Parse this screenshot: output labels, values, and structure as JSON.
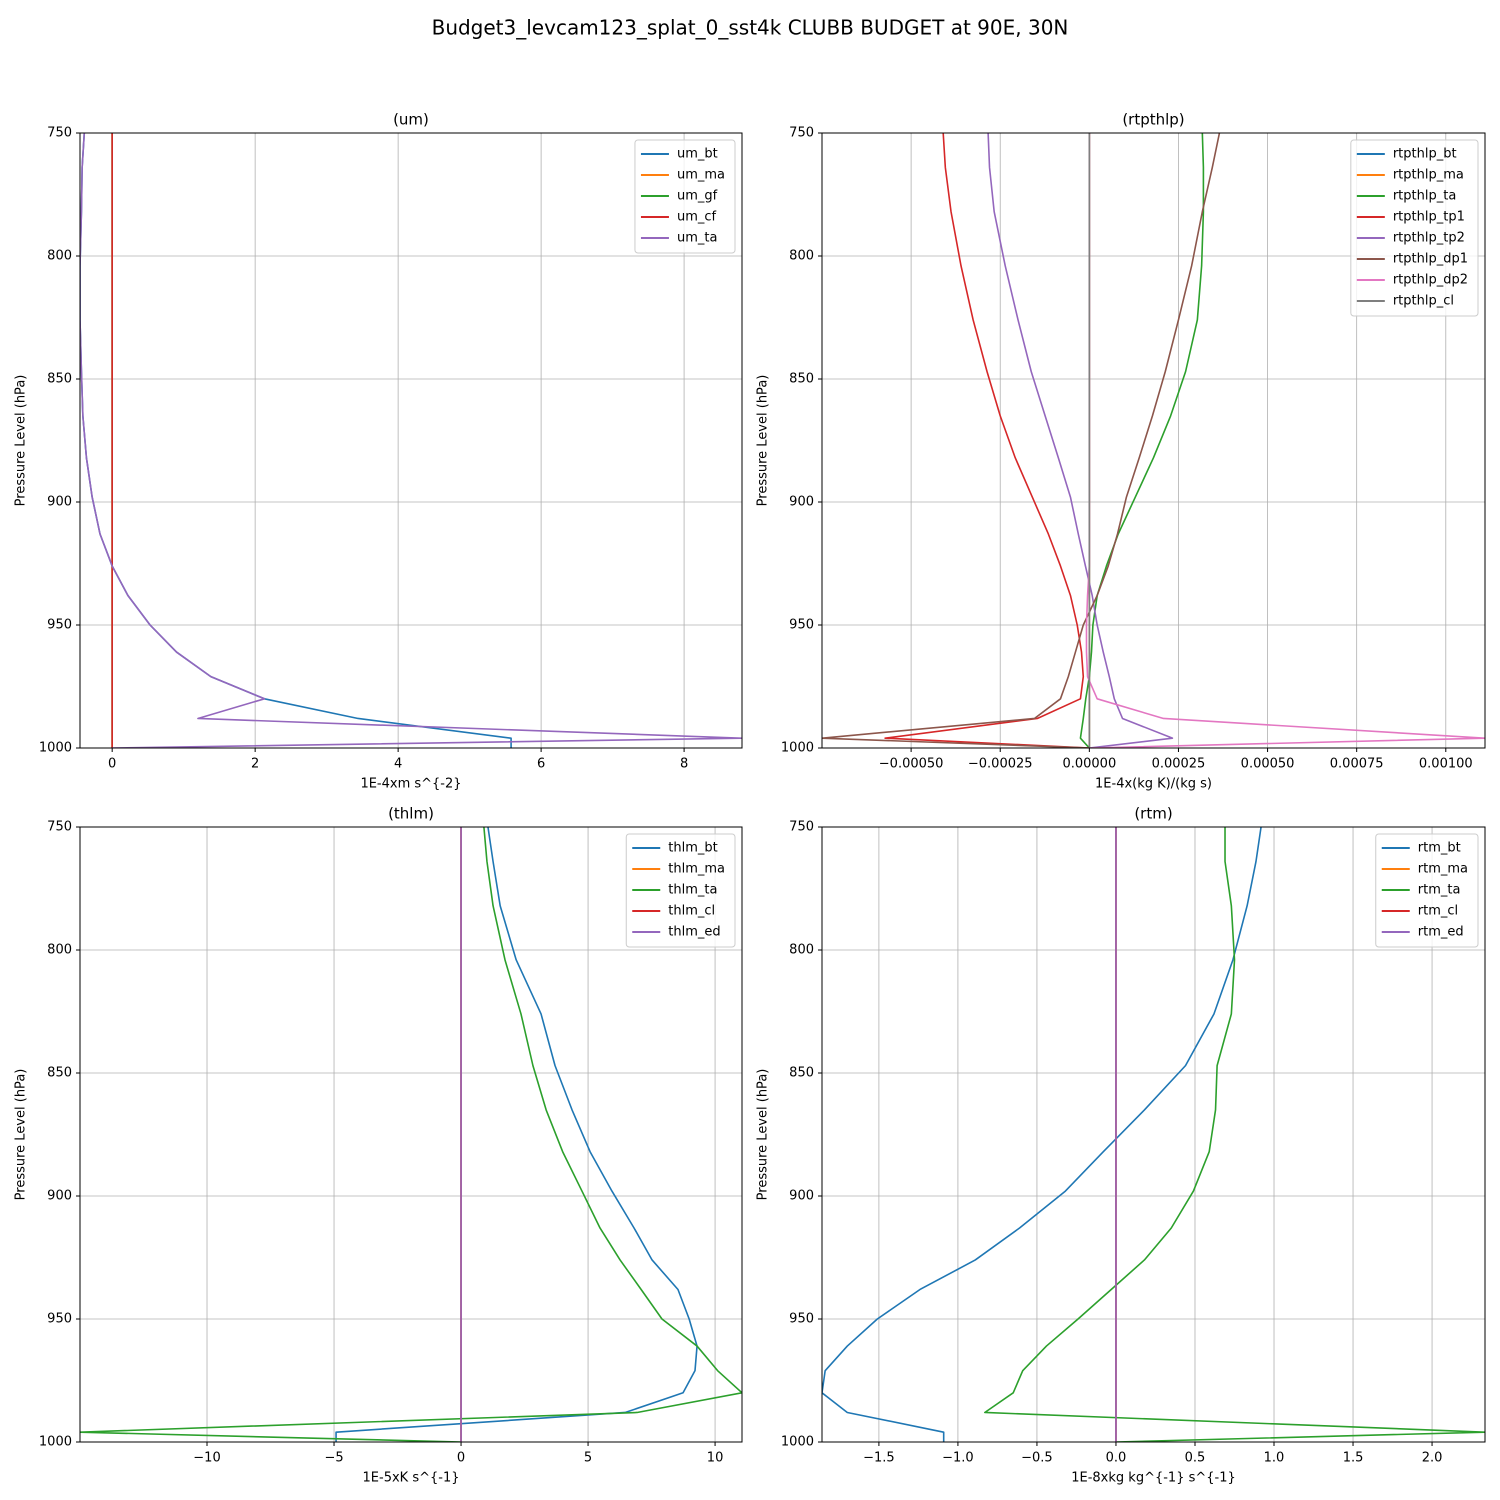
{
  "title": "Budget3_levcam123_splat_0_sst4k CLUBB BUDGET at 90E, 30N",
  "chart_data": [
    {
      "type": "line",
      "title": "(um)",
      "xlabel": "1E-4xm s^{-2}",
      "ylabel": "Pressure Level (hPa)",
      "xlim": [
        -0.45,
        8.81
      ],
      "xticks": [
        0,
        2,
        4,
        6,
        8
      ],
      "ylim": [
        1000,
        750
      ],
      "yticks": [
        750,
        800,
        850,
        900,
        950,
        1000
      ],
      "grid": true,
      "legend": "upper right",
      "y": [
        750,
        764,
        782,
        804,
        826,
        847,
        865,
        882,
        898,
        913,
        926,
        938,
        950,
        961,
        971,
        980,
        988,
        996,
        1000
      ],
      "series": [
        {
          "name": "um_bt",
          "color": "#1f77b4",
          "values": [
            -0.39,
            -0.42,
            -0.43,
            -0.45,
            -0.45,
            -0.43,
            -0.41,
            -0.36,
            -0.28,
            -0.17,
            0.0,
            0.22,
            0.53,
            0.9,
            1.38,
            2.13,
            3.44,
            5.58,
            5.58
          ]
        },
        {
          "name": "um_ma",
          "color": "#ff7f0e",
          "values": [
            0,
            0,
            0,
            0,
            0,
            0,
            0,
            0,
            0,
            0,
            0,
            0,
            0,
            0,
            0,
            0,
            0,
            0,
            0
          ]
        },
        {
          "name": "um_gf",
          "color": "#2ca02c",
          "values": [
            0,
            0,
            0,
            0,
            0,
            0,
            0,
            0,
            0,
            0,
            0,
            0,
            0,
            0,
            0,
            0,
            0,
            0,
            0
          ]
        },
        {
          "name": "um_cf",
          "color": "#d62728",
          "values": [
            0,
            0,
            0,
            0,
            0,
            0,
            0,
            0,
            0,
            0,
            0,
            0,
            0,
            0,
            0,
            0,
            0,
            0,
            0
          ]
        },
        {
          "name": "um_ta",
          "color": "#9467bd",
          "values": [
            -0.39,
            -0.42,
            -0.43,
            -0.45,
            -0.45,
            -0.43,
            -0.41,
            -0.36,
            -0.28,
            -0.17,
            0.0,
            0.22,
            0.53,
            0.9,
            1.38,
            2.13,
            1.2,
            8.8,
            0.0
          ]
        }
      ]
    },
    {
      "type": "line",
      "title": "(rtpthlp)",
      "xlabel": "1E-4x(kg K)/(kg s)",
      "ylabel": "Pressure Level (hPa)",
      "xlim": [
        -0.00075,
        0.00111
      ],
      "xticks": [
        {
          "value": -0.0005,
          "label": "−0.00050"
        },
        {
          "value": -0.00025,
          "label": "−0.00025"
        },
        {
          "value": 0,
          "label": "0.00000"
        },
        {
          "value": 0.00025,
          "label": "0.00025"
        },
        {
          "value": 0.0005,
          "label": "0.00050"
        },
        {
          "value": 0.00075,
          "label": "0.00075"
        },
        {
          "value": 0.001,
          "label": "0.00100"
        }
      ],
      "ylim": [
        1000,
        750
      ],
      "yticks": [
        750,
        800,
        850,
        900,
        950,
        1000
      ],
      "grid": true,
      "legend": "upper right",
      "y": [
        750,
        764,
        782,
        804,
        826,
        847,
        865,
        882,
        898,
        913,
        926,
        938,
        950,
        961,
        971,
        980,
        988,
        996,
        1000
      ],
      "series": [
        {
          "name": "rtpthlp_bt",
          "color": "#1f77b4",
          "values": [
            0,
            0,
            0,
            0,
            0,
            0,
            0,
            0,
            0,
            0,
            0,
            0,
            0,
            0,
            0,
            0,
            0,
            0,
            0
          ]
        },
        {
          "name": "rtpthlp_ma",
          "color": "#ff7f0e",
          "values": [
            0,
            0,
            0,
            0,
            0,
            0,
            0,
            0,
            0,
            0,
            0,
            0,
            0,
            0,
            0,
            0,
            0,
            0,
            0
          ]
        },
        {
          "name": "rtpthlp_ta",
          "color": "#2ca02c",
          "values": [
            0.000317,
            0.00032,
            0.00032,
            0.000315,
            0.000303,
            0.00027,
            0.000228,
            0.00018,
            0.000129,
            8.1e-05,
            4.8e-05,
            2.2e-05,
            1e-05,
            6e-06,
            0,
            -1e-05,
            -1.7e-05,
            -2.5e-05,
            0
          ]
        },
        {
          "name": "rtpthlp_tp1",
          "color": "#d62728",
          "values": [
            -0.00041,
            -0.000404,
            -0.000388,
            -0.00036,
            -0.000326,
            -0.000287,
            -0.00025,
            -0.000208,
            -0.00016,
            -0.000115,
            -8.1e-05,
            -5.3e-05,
            -3.4e-05,
            -2.2e-05,
            -1.7e-05,
            -2.5e-05,
            -0.000146,
            -0.000573,
            0
          ]
        },
        {
          "name": "rtpthlp_tp2",
          "color": "#9467bd",
          "values": [
            -0.000284,
            -0.00028,
            -0.000267,
            -0.000236,
            -0.0002,
            -0.000163,
            -0.000124,
            -8.7e-05,
            -5.3e-05,
            -3.1e-05,
            -1.1e-05,
            8e-06,
            2.2e-05,
            3.9e-05,
            5.6e-05,
            7e-05,
            9.3e-05,
            0.000233,
            0
          ]
        },
        {
          "name": "rtpthlp_dp1",
          "color": "#8c564b",
          "values": [
            0.000365,
            0.000345,
            0.000317,
            0.000287,
            0.00025,
            0.000213,
            0.000177,
            0.00014,
            0.000104,
            7.9e-05,
            5.3e-05,
            2.2e-05,
            -1.7e-05,
            -3.9e-05,
            -5.9e-05,
            -8.1e-05,
            -0.000154,
            -0.00075,
            0
          ]
        },
        {
          "name": "rtpthlp_dp2",
          "color": "#e377c2",
          "values": [
            0,
            0,
            0,
            0,
            0,
            0,
            0,
            0,
            0,
            0,
            0,
            -5e-06,
            -8e-06,
            -8e-06,
            -5e-06,
            2.2e-05,
            0.000208,
            0.00111,
            0
          ]
        },
        {
          "name": "rtpthlp_cl",
          "color": "#7f7f7f",
          "values": [
            0,
            0,
            0,
            0,
            0,
            0,
            0,
            0,
            0,
            0,
            0,
            0,
            0,
            0,
            0,
            0,
            0,
            0,
            0
          ]
        }
      ]
    },
    {
      "type": "line",
      "title": "(thlm)",
      "xlabel": "1E-5xK s^{-1}",
      "ylabel": "Pressure Level (hPa)",
      "xlim": [
        -15,
        11.06
      ],
      "xticks": [
        {
          "value": -10,
          "label": "−10"
        },
        {
          "value": -5,
          "label": "−5"
        },
        0,
        5,
        10
      ],
      "ylim": [
        1000,
        750
      ],
      "yticks": [
        750,
        800,
        850,
        900,
        950,
        1000
      ],
      "grid": true,
      "legend": "upper right",
      "y": [
        750,
        764,
        782,
        804,
        826,
        847,
        865,
        882,
        898,
        913,
        926,
        938,
        950,
        961,
        971,
        980,
        988,
        996,
        1000
      ],
      "series": [
        {
          "name": "thlm_bt",
          "color": "#1f77b4",
          "values": [
            1.06,
            1.26,
            1.54,
            2.17,
            3.15,
            3.7,
            4.37,
            5.08,
            5.94,
            6.81,
            7.52,
            8.54,
            8.98,
            9.29,
            9.21,
            8.74,
            6.46,
            -4.92,
            -4.92
          ]
        },
        {
          "name": "thlm_ma",
          "color": "#ff7f0e",
          "values": [
            0,
            0,
            0,
            0,
            0,
            0,
            0,
            0,
            0,
            0,
            0,
            0,
            0,
            0,
            0,
            0,
            0,
            0,
            0
          ]
        },
        {
          "name": "thlm_ta",
          "color": "#2ca02c",
          "values": [
            0.9,
            1.02,
            1.26,
            1.73,
            2.36,
            2.83,
            3.35,
            4.0,
            4.76,
            5.47,
            6.26,
            7.09,
            7.91,
            9.29,
            10.1,
            11.06,
            6.93,
            -15.0,
            0
          ]
        },
        {
          "name": "thlm_cl",
          "color": "#d62728",
          "values": [
            0,
            0,
            0,
            0,
            0,
            0,
            0,
            0,
            0,
            0,
            0,
            0,
            0,
            0,
            0,
            0,
            0,
            0,
            0
          ]
        },
        {
          "name": "thlm_ed",
          "color": "#9467bd",
          "values": [
            0,
            0,
            0,
            0,
            0,
            0,
            0,
            0,
            0,
            0,
            0,
            0,
            0,
            0,
            0,
            0,
            0,
            0,
            0
          ]
        }
      ]
    },
    {
      "type": "line",
      "title": "(rtm)",
      "xlabel": "1E-8xkg kg^{-1} s^{-1}",
      "ylabel": "Pressure Level (hPa)",
      "xlim": [
        -1.86,
        2.335
      ],
      "xticks": [
        {
          "value": -1.5,
          "label": "−1.5"
        },
        {
          "value": -1,
          "label": "−1.0"
        },
        {
          "value": -0.5,
          "label": "−0.5"
        },
        {
          "value": 0,
          "label": "0.0"
        },
        0.5,
        {
          "value": 1,
          "label": "1.0"
        },
        1.5,
        {
          "value": 2,
          "label": "2.0"
        }
      ],
      "ylim": [
        1000,
        750
      ],
      "yticks": [
        750,
        800,
        850,
        900,
        950,
        1000
      ],
      "grid": true,
      "legend": "upper right",
      "y": [
        750,
        764,
        782,
        804,
        826,
        847,
        865,
        882,
        898,
        913,
        926,
        938,
        950,
        961,
        971,
        980,
        988,
        996,
        1000
      ],
      "series": [
        {
          "name": "rtm_bt",
          "color": "#1f77b4",
          "values": [
            0.918,
            0.886,
            0.83,
            0.74,
            0.62,
            0.44,
            0.18,
            -0.08,
            -0.32,
            -0.61,
            -0.89,
            -1.24,
            -1.51,
            -1.7,
            -1.84,
            -1.86,
            -1.7,
            -1.09,
            -1.09
          ]
        },
        {
          "name": "rtm_ma",
          "color": "#ff7f0e",
          "values": [
            0,
            0,
            0,
            0,
            0,
            0,
            0,
            0,
            0,
            0,
            0,
            0,
            0,
            0,
            0,
            0,
            0,
            0,
            0
          ]
        },
        {
          "name": "rtm_ta",
          "color": "#2ca02c",
          "values": [
            0.69,
            0.69,
            0.73,
            0.75,
            0.73,
            0.64,
            0.63,
            0.59,
            0.49,
            0.35,
            0.18,
            -0.03,
            -0.24,
            -0.44,
            -0.59,
            -0.65,
            -0.83,
            2.335,
            0
          ]
        },
        {
          "name": "rtm_cl",
          "color": "#d62728",
          "values": [
            0,
            0,
            0,
            0,
            0,
            0,
            0,
            0,
            0,
            0,
            0,
            0,
            0,
            0,
            0,
            0,
            0,
            0,
            0
          ]
        },
        {
          "name": "rtm_ed",
          "color": "#9467bd",
          "values": [
            0,
            0,
            0,
            0,
            0,
            0,
            0,
            0,
            0,
            0,
            0,
            0,
            0,
            0,
            0,
            0,
            0,
            0,
            0
          ]
        }
      ]
    }
  ]
}
